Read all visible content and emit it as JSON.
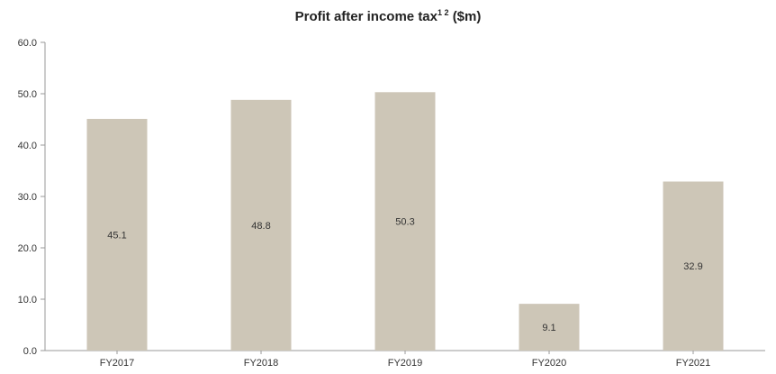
{
  "chart_data": {
    "type": "bar",
    "title": "Profit after income tax",
    "title_superscript": "1 2",
    "title_unit": "($m)",
    "categories": [
      "FY2017",
      "FY2018",
      "FY2019",
      "FY2020",
      "FY2021"
    ],
    "values": [
      45.1,
      48.8,
      50.3,
      9.1,
      32.9
    ],
    "data_labels": [
      "45.1",
      "48.8",
      "50.3",
      "9.1",
      "32.9"
    ],
    "y_ticks": [
      "0.0",
      "10.0",
      "20.0",
      "30.0",
      "40.0",
      "50.0",
      "60.0"
    ],
    "ylim": [
      0,
      60
    ],
    "xlabel": "",
    "ylabel": "",
    "grid": false,
    "legend": "none",
    "bar_color": "#cdc6b7",
    "axis_color": "#999999",
    "data_label_position": "middle"
  }
}
